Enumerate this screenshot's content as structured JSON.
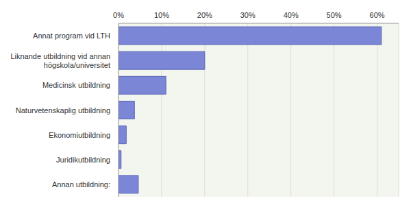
{
  "chart_data": {
    "type": "bar",
    "orientation": "horizontal",
    "categories": [
      "Annat program vid LTH",
      "Liknande utbildning vid annan högskola/universitet",
      "Medicinsk utbildning",
      "Naturvetenskaplig utbildning",
      "Ekonomiutbildning",
      "Juridikutbildning",
      "Annan utbildning:"
    ],
    "values": [
      61,
      20,
      11,
      3.7,
      1.8,
      0.6,
      4.6
    ],
    "color": "#7b86d6",
    "xlim": [
      0,
      65
    ],
    "xticks": [
      {
        "value": 0,
        "label": "0%"
      },
      {
        "value": 10,
        "label": "10%"
      },
      {
        "value": 20,
        "label": "20%"
      },
      {
        "value": 30,
        "label": "30%"
      },
      {
        "value": 40,
        "label": "40%"
      },
      {
        "value": 50,
        "label": "50%"
      },
      {
        "value": 60,
        "label": "60%"
      }
    ],
    "grid": true
  }
}
